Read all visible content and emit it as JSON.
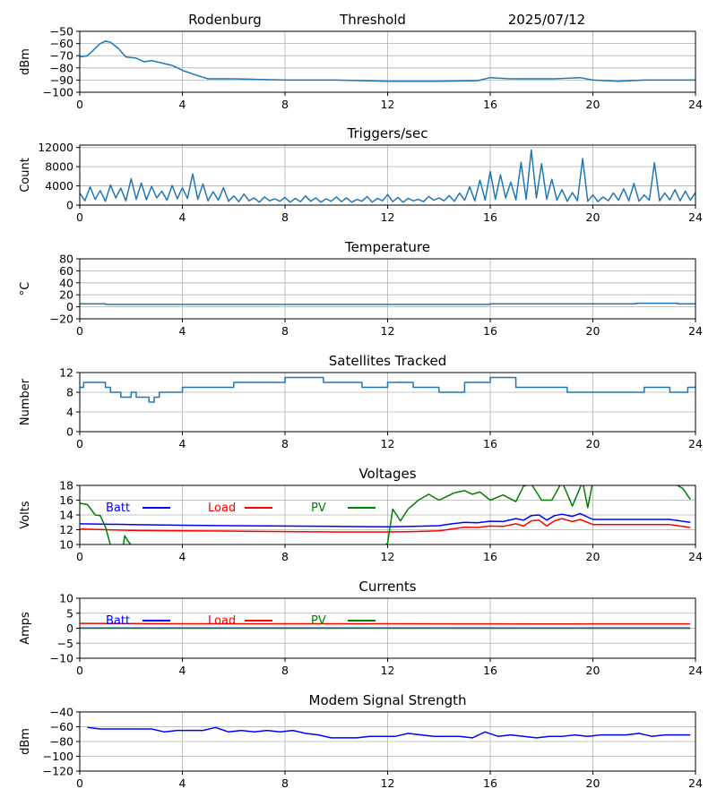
{
  "header": {
    "site": "Rodenburg",
    "mode": "Threshold",
    "date": "2025/07/12"
  },
  "chart_data": [
    {
      "type": "line",
      "title": "",
      "ylabel": "dBm",
      "xlim": [
        0,
        24
      ],
      "ylim": [
        -100,
        -50
      ],
      "xticks": [
        "0",
        "4",
        "8",
        "12",
        "16",
        "20",
        "24"
      ],
      "yticks": [
        "−50",
        "−60",
        "−70",
        "−80",
        "−90",
        "−100"
      ],
      "ytick_values": [
        -50,
        -60,
        -70,
        -80,
        -90,
        -100
      ],
      "grid": true,
      "series": [
        {
          "color": "#1f77b4",
          "x": [
            0,
            0.3,
            0.5,
            0.8,
            1.0,
            1.2,
            1.5,
            1.8,
            2.2,
            2.5,
            2.8,
            3.2,
            3.6,
            4.0,
            4.4,
            4.7,
            5.0,
            6.0,
            8.0,
            10.0,
            12.0,
            14.0,
            15.5,
            16.0,
            16.8,
            17.5,
            18.5,
            19.5,
            20.0,
            21.0,
            22.0,
            23.0,
            24.0
          ],
          "y": [
            -71,
            -70,
            -66,
            -60,
            -58,
            -59,
            -64,
            -71,
            -72,
            -75,
            -74,
            -76,
            -78,
            -82,
            -85,
            -87,
            -89,
            -89,
            -90,
            -90,
            -91,
            -91,
            -90.5,
            -88,
            -89,
            -89,
            -89,
            -88,
            -90,
            -91,
            -90,
            -90,
            -90
          ]
        }
      ]
    },
    {
      "type": "line",
      "title": "Triggers/sec",
      "ylabel": "Count",
      "xlim": [
        0,
        24
      ],
      "ylim": [
        0,
        12500
      ],
      "xticks": [
        "0",
        "4",
        "8",
        "12",
        "16",
        "20",
        "24"
      ],
      "yticks": [
        "0",
        "4000",
        "8000",
        "12000"
      ],
      "ytick_values": [
        0,
        4000,
        8000,
        12000
      ],
      "grid": true,
      "series": [
        {
          "color": "#1f77b4",
          "x": [
            0,
            0.2,
            0.4,
            0.6,
            0.8,
            1.0,
            1.2,
            1.4,
            1.6,
            1.8,
            2.0,
            2.2,
            2.4,
            2.6,
            2.8,
            3.0,
            3.2,
            3.4,
            3.6,
            3.8,
            4.0,
            4.2,
            4.4,
            4.6,
            4.8,
            5.0,
            5.2,
            5.4,
            5.6,
            5.8,
            6.0,
            6.2,
            6.4,
            6.6,
            6.8,
            7.0,
            7.2,
            7.4,
            7.6,
            7.8,
            8.0,
            8.2,
            8.4,
            8.6,
            8.8,
            9.0,
            9.2,
            9.4,
            9.6,
            9.8,
            10.0,
            10.2,
            10.4,
            10.6,
            10.8,
            11.0,
            11.2,
            11.4,
            11.6,
            11.8,
            12.0,
            12.2,
            12.4,
            12.6,
            12.8,
            13.0,
            13.2,
            13.4,
            13.6,
            13.8,
            14.0,
            14.2,
            14.4,
            14.6,
            14.8,
            15.0,
            15.2,
            15.4,
            15.6,
            15.8,
            16.0,
            16.2,
            16.4,
            16.6,
            16.8,
            17.0,
            17.2,
            17.4,
            17.6,
            17.8,
            18.0,
            18.2,
            18.4,
            18.6,
            18.8,
            19.0,
            19.2,
            19.4,
            19.6,
            19.8,
            20.0,
            20.2,
            20.4,
            20.6,
            20.8,
            21.0,
            21.2,
            21.4,
            21.6,
            21.8,
            22.0,
            22.2,
            22.4,
            22.6,
            22.8,
            23.0,
            23.2,
            23.4,
            23.6,
            23.8,
            24.0
          ],
          "y": [
            2500,
            900,
            3800,
            1200,
            3000,
            800,
            4200,
            1500,
            3500,
            900,
            5500,
            1200,
            4600,
            1100,
            3900,
            1500,
            2900,
            1000,
            4100,
            1300,
            3600,
            1400,
            6500,
            1200,
            4400,
            900,
            2800,
            1000,
            3600,
            800,
            1900,
            700,
            2300,
            900,
            1500,
            600,
            1700,
            900,
            1300,
            800,
            1600,
            600,
            1400,
            700,
            1900,
            800,
            1500,
            600,
            1300,
            800,
            1700,
            700,
            1500,
            600,
            1200,
            800,
            1800,
            600,
            1400,
            900,
            2200,
            700,
            1600,
            600,
            1400,
            900,
            1200,
            700,
            1800,
            1000,
            1500,
            900,
            2000,
            800,
            2500,
            1000,
            3800,
            900,
            5200,
            1000,
            7000,
            1200,
            6300,
            1500,
            4800,
            1100,
            8900,
            1200,
            11500,
            1500,
            8600,
            1200,
            5400,
            1000,
            3200,
            800,
            2600,
            900,
            9700,
            800,
            2100,
            700,
            1700,
            900,
            2500,
            1000,
            3400,
            900,
            4500,
            800,
            2100,
            1000,
            8800,
            900,
            2500,
            1100,
            3200,
            900,
            2900,
            1000,
            2600
          ]
        }
      ]
    },
    {
      "type": "line",
      "title": "Temperature",
      "ylabel": "°C",
      "xlim": [
        0,
        24
      ],
      "ylim": [
        -20,
        80
      ],
      "xticks": [
        "0",
        "4",
        "8",
        "12",
        "16",
        "20",
        "24"
      ],
      "yticks": [
        "−20",
        "0",
        "20",
        "40",
        "60",
        "80"
      ],
      "ytick_values": [
        -20,
        0,
        20,
        40,
        60,
        80
      ],
      "grid": true,
      "series": [
        {
          "color": "#1f77b4",
          "x": [
            0,
            1.0,
            1.0,
            16.0,
            16.0,
            21.7,
            21.7,
            23.3,
            23.3,
            24.0
          ],
          "y": [
            5,
            5,
            4,
            4,
            5,
            5,
            6,
            6,
            5,
            5
          ]
        }
      ]
    },
    {
      "type": "line",
      "title": "Satellites Tracked",
      "ylabel": "Number",
      "xlim": [
        0,
        24
      ],
      "ylim": [
        0,
        12
      ],
      "xticks": [
        "0",
        "4",
        "8",
        "12",
        "16",
        "20",
        "24"
      ],
      "yticks": [
        "0",
        "4",
        "8",
        "12"
      ],
      "ytick_values": [
        0,
        4,
        8,
        12
      ],
      "grid": true,
      "series": [
        {
          "color": "#1f77b4",
          "x": [
            0,
            0.15,
            0.15,
            1.0,
            1.0,
            1.2,
            1.2,
            1.6,
            1.6,
            2.0,
            2.0,
            2.2,
            2.2,
            2.7,
            2.7,
            2.9,
            2.9,
            3.1,
            3.1,
            4.0,
            4.0,
            5.0,
            5.0,
            6.0,
            6.0,
            7.0,
            7.0,
            8.0,
            8.0,
            9.5,
            9.5,
            11.0,
            11.0,
            12.0,
            12.0,
            13.0,
            13.0,
            14.0,
            14.0,
            15.0,
            15.0,
            16.0,
            16.0,
            17.0,
            17.0,
            18.0,
            18.0,
            19.0,
            19.0,
            20.0,
            20.0,
            21.0,
            21.0,
            22.0,
            22.0,
            23.0,
            23.0,
            23.7,
            23.7,
            24.0
          ],
          "y": [
            9,
            9,
            10,
            10,
            9,
            9,
            8,
            8,
            7,
            7,
            8,
            8,
            7,
            7,
            6,
            6,
            7,
            7,
            8,
            8,
            9,
            9,
            9,
            9,
            10,
            10,
            10,
            10,
            11,
            11,
            10,
            10,
            9,
            9,
            10,
            10,
            9,
            9,
            8,
            8,
            10,
            10,
            11,
            11,
            9,
            9,
            9,
            9,
            8,
            8,
            8,
            8,
            8,
            8,
            9,
            9,
            8,
            8,
            9,
            9
          ]
        }
      ]
    },
    {
      "type": "line",
      "title": "Voltages",
      "ylabel": "Volts",
      "xlim": [
        0,
        24
      ],
      "ylim": [
        10,
        18
      ],
      "xticks": [
        "0",
        "4",
        "8",
        "12",
        "16",
        "20",
        "24"
      ],
      "yticks": [
        "10",
        "12",
        "14",
        "16",
        "18"
      ],
      "ytick_values": [
        10,
        12,
        14,
        16,
        18
      ],
      "grid": true,
      "legend": "top-left, horizontal",
      "series": [
        {
          "name": "Batt",
          "color": "#0000ff",
          "x": [
            0,
            2,
            4,
            6,
            8,
            10,
            12,
            13,
            14,
            14.5,
            15,
            15.5,
            16,
            16.5,
            17,
            17.3,
            17.6,
            17.9,
            18.2,
            18.5,
            18.8,
            19.2,
            19.5,
            20,
            21,
            22,
            23,
            23.8
          ],
          "y": [
            12.8,
            12.7,
            12.6,
            12.55,
            12.5,
            12.45,
            12.4,
            12.45,
            12.55,
            12.8,
            13.0,
            12.95,
            13.15,
            13.1,
            13.5,
            13.3,
            13.9,
            14.0,
            13.3,
            13.9,
            14.1,
            13.8,
            14.2,
            13.4,
            13.4,
            13.4,
            13.4,
            13.0
          ]
        },
        {
          "name": "Load",
          "color": "#ff0000",
          "x": [
            0,
            2,
            4,
            6,
            8,
            10,
            12,
            13,
            14,
            14.5,
            15,
            15.5,
            16,
            16.5,
            17,
            17.3,
            17.6,
            17.9,
            18.2,
            18.5,
            18.8,
            19.2,
            19.5,
            20,
            21,
            22,
            23,
            23.8
          ],
          "y": [
            12.1,
            11.9,
            11.85,
            11.8,
            11.75,
            11.7,
            11.7,
            11.75,
            11.85,
            12.1,
            12.35,
            12.3,
            12.5,
            12.45,
            12.8,
            12.5,
            13.2,
            13.3,
            12.5,
            13.2,
            13.5,
            13.1,
            13.4,
            12.7,
            12.7,
            12.7,
            12.7,
            12.3
          ]
        },
        {
          "name": "PV",
          "color": "#008000",
          "x": [
            0,
            0.3,
            0.6,
            0.8,
            1.0,
            1.2,
            1.7,
            1.75,
            1.85,
            2.0,
            11.9,
            12.0,
            12.2,
            12.5,
            12.8,
            13.2,
            13.6,
            14.0,
            14.3,
            14.6,
            15.0,
            15.3,
            15.6,
            16.0,
            16.5,
            17.0,
            17.3,
            17.6,
            18.0,
            18.4,
            18.8,
            19.2,
            19.6,
            19.8,
            20.0,
            23.2,
            23.5,
            23.8
          ],
          "y": [
            15.6,
            15.4,
            14.0,
            13.9,
            12.4,
            9.9,
            9.9,
            11.2,
            10.6,
            9.9,
            9.9,
            10.2,
            14.8,
            13.2,
            14.8,
            16.0,
            16.8,
            16.0,
            16.5,
            17.0,
            17.3,
            16.8,
            17.1,
            16.0,
            16.7,
            15.8,
            17.9,
            18.2,
            16.0,
            16.0,
            18.5,
            15.2,
            18.5,
            15.0,
            18.5,
            18.2,
            17.6,
            16.1
          ]
        }
      ]
    },
    {
      "type": "line",
      "title": "Currents",
      "ylabel": "Amps",
      "xlim": [
        0,
        24
      ],
      "ylim": [
        -10,
        10
      ],
      "xticks": [
        "0",
        "4",
        "8",
        "12",
        "16",
        "20",
        "24"
      ],
      "yticks": [
        "−10",
        "−5",
        "0",
        "5",
        "10"
      ],
      "ytick_values": [
        -10,
        -5,
        0,
        5,
        10
      ],
      "grid": true,
      "legend": "top-left, horizontal",
      "series": [
        {
          "name": "Batt",
          "color": "#0000ff",
          "x": [
            0,
            23.8
          ],
          "y": [
            0.1,
            0.1
          ]
        },
        {
          "name": "Load",
          "color": "#ff0000",
          "x": [
            0,
            4,
            8,
            12,
            16,
            18,
            20,
            23.8
          ],
          "y": [
            1.6,
            1.5,
            1.5,
            1.5,
            1.45,
            1.4,
            1.45,
            1.45
          ]
        },
        {
          "name": "PV",
          "color": "#008000",
          "x": [
            0,
            23.8
          ],
          "y": [
            0,
            0
          ]
        }
      ]
    },
    {
      "type": "line",
      "title": "Modem Signal Strength",
      "ylabel": "dBm",
      "xlim": [
        0,
        24
      ],
      "ylim": [
        -120,
        -40
      ],
      "xticks": [
        "0",
        "4",
        "8",
        "12",
        "16",
        "20",
        "24"
      ],
      "yticks": [
        "−40",
        "−60",
        "−80",
        "−100",
        "−120"
      ],
      "ytick_values": [
        -40,
        -60,
        -80,
        -100,
        -120
      ],
      "grid": true,
      "series": [
        {
          "color": "#0000ff",
          "x": [
            0.3,
            0.8,
            1.3,
            1.8,
            2.3,
            2.8,
            3.3,
            3.8,
            4.3,
            4.8,
            5.3,
            5.8,
            6.3,
            6.8,
            7.3,
            7.8,
            8.3,
            8.8,
            9.3,
            9.8,
            10.3,
            10.8,
            11.3,
            11.8,
            12.3,
            12.8,
            13.3,
            13.8,
            14.3,
            14.8,
            15.3,
            15.8,
            16.3,
            16.8,
            17.3,
            17.8,
            18.3,
            18.8,
            19.3,
            19.8,
            20.3,
            20.8,
            21.3,
            21.8,
            22.3,
            22.8,
            23.3,
            23.8
          ],
          "y": [
            -61,
            -63,
            -63,
            -63,
            -63,
            -63,
            -67,
            -65,
            -65,
            -65,
            -61,
            -67,
            -65,
            -67,
            -65,
            -67,
            -65,
            -69,
            -71,
            -75,
            -75,
            -75,
            -73,
            -73,
            -73,
            -69,
            -71,
            -73,
            -73,
            -73,
            -75,
            -67,
            -73,
            -71,
            -73,
            -75,
            -73,
            -73,
            -71,
            -73,
            -71,
            -71,
            -71,
            -69,
            -73,
            -71,
            -71,
            -71
          ]
        }
      ]
    }
  ]
}
